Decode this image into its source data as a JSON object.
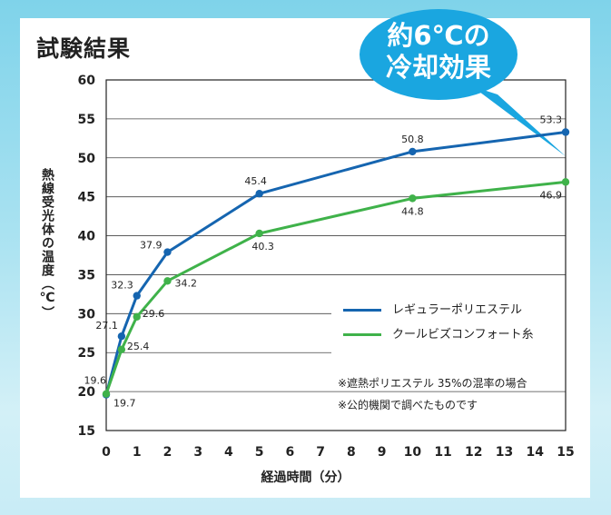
{
  "title": "試験結果",
  "bubble": {
    "line1": "約6℃の",
    "line2": "冷却効果"
  },
  "notes": [
    "※遮熱ポリエステル 35%の混率の場合",
    "※公的機関で調べたものです"
  ],
  "colors": {
    "blue": "#1565b0",
    "green": "#3fb24a",
    "bubble": "#1aa6e0"
  },
  "chart_data": {
    "type": "line",
    "xlabel": "経過時間（分）",
    "ylabel": "熱線受光体の温度（℃）",
    "xlim": [
      0,
      15
    ],
    "ylim": [
      15,
      60
    ],
    "x_ticks": [
      0,
      1,
      2,
      3,
      4,
      5,
      6,
      7,
      8,
      9,
      10,
      11,
      12,
      13,
      14,
      15
    ],
    "y_ticks": [
      15,
      20,
      25,
      30,
      35,
      40,
      45,
      50,
      55,
      60
    ],
    "series": [
      {
        "name": "レギュラーポリエステル",
        "points": [
          [
            0,
            19.6
          ],
          [
            0.5,
            27.1
          ],
          [
            1,
            32.3
          ],
          [
            2,
            37.9
          ],
          [
            5,
            45.4
          ],
          [
            10,
            50.8
          ],
          [
            15,
            53.3
          ]
        ],
        "labels": [
          "19.6",
          "27.1",
          "32.3",
          "37.9",
          "45.4",
          "50.8",
          "53.3"
        ]
      },
      {
        "name": "クールビズコンフォート糸",
        "points": [
          [
            0,
            19.7
          ],
          [
            0.5,
            25.4
          ],
          [
            1,
            29.6
          ],
          [
            2,
            34.2
          ],
          [
            5,
            40.3
          ],
          [
            10,
            44.8
          ],
          [
            15,
            46.9
          ]
        ],
        "labels": [
          "19.7",
          "25.4",
          "29.6",
          "34.2",
          "40.3",
          "44.8",
          "46.9"
        ]
      }
    ],
    "legend": "right"
  }
}
